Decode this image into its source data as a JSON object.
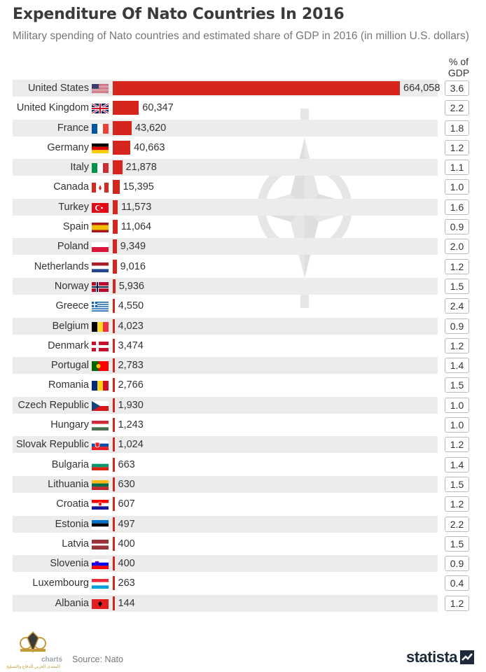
{
  "header": {
    "title": "Expenditure Of Nato Countries In 2016",
    "subtitle": "Military spending of Nato countries and estimated share of GDP in 2016 (in million U.S. dollars)",
    "gdp_column_label_1": "% of",
    "gdp_column_label_2": "GDP"
  },
  "footer": {
    "source": "Source: Nato",
    "brand": "statista",
    "logo_text": "charts",
    "logo_arabic": "المنتدى العربي للدفاع والتسليح"
  },
  "colors": {
    "bar": "#d6251c",
    "band": "#ececec",
    "text": "#333333"
  },
  "chart_data": {
    "type": "bar",
    "orientation": "horizontal",
    "title": "Expenditure Of Nato Countries In 2016",
    "subtitle": "Military spending of Nato countries and estimated share of GDP in 2016 (in million U.S. dollars)",
    "categories": [
      "United States",
      "United Kingdom",
      "France",
      "Germany",
      "Italy",
      "Canada",
      "Turkey",
      "Spain",
      "Poland",
      "Netherlands",
      "Norway",
      "Greece",
      "Belgium",
      "Denmark",
      "Portugal",
      "Romania",
      "Czech Republic",
      "Hungary",
      "Slovak Republic",
      "Bulgaria",
      "Lithuania",
      "Croatia",
      "Estonia",
      "Latvia",
      "Slovenia",
      "Luxembourg",
      "Albania"
    ],
    "values": [
      664058,
      60347,
      43620,
      40663,
      21878,
      15395,
      11573,
      11064,
      9349,
      9016,
      5936,
      4550,
      4023,
      3474,
      2783,
      2766,
      1930,
      1243,
      1024,
      663,
      630,
      607,
      497,
      400,
      400,
      263,
      144
    ],
    "value_labels": [
      "664,058",
      "60,347",
      "43,620",
      "40,663",
      "21,878",
      "15,395",
      "11,573",
      "11,064",
      "9,349",
      "9,016",
      "5,936",
      "4,550",
      "4,023",
      "3,474",
      "2,783",
      "2,766",
      "1,930",
      "1,243",
      "1,024",
      "663",
      "630",
      "607",
      "497",
      "400",
      "400",
      "263",
      "144"
    ],
    "gdp_share": [
      "3.6",
      "2.2",
      "1.8",
      "1.2",
      "1.1",
      "1.0",
      "1.6",
      "0.9",
      "2.0",
      "1.2",
      "1.5",
      "2.4",
      "0.9",
      "1.2",
      "1.4",
      "1.5",
      "1.0",
      "1.0",
      "1.2",
      "1.4",
      "1.5",
      "1.2",
      "2.2",
      "1.5",
      "0.9",
      "0.4",
      "1.2"
    ],
    "flags": [
      "us-flag",
      "uk-flag",
      "france-flag",
      "germany-flag",
      "italy-flag",
      "canada-flag",
      "turkey-flag",
      "spain-flag",
      "poland-flag",
      "netherlands-flag",
      "norway-flag",
      "greece-flag",
      "belgium-flag",
      "denmark-flag",
      "portugal-flag",
      "romania-flag",
      "czech-flag",
      "hungary-flag",
      "slovakia-flag",
      "bulgaria-flag",
      "lithuania-flag",
      "croatia-flag",
      "estonia-flag",
      "latvia-flag",
      "slovenia-flag",
      "luxembourg-flag",
      "albania-flag"
    ],
    "xlim": [
      0,
      664058
    ],
    "grid": false,
    "legend": "none"
  }
}
